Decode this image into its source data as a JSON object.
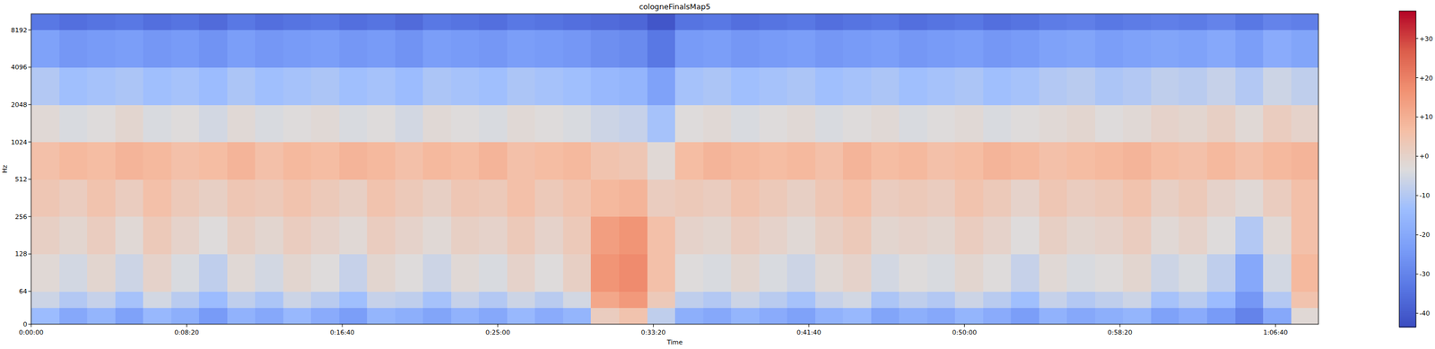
{
  "chart_data": {
    "type": "heatmap",
    "title": "cologneFinalsMap5",
    "x_label": "Time",
    "y_label": "Hz",
    "log": "y",
    "xlim": [
      0,
      4138
    ],
    "ylim": [
      0,
      11025
    ],
    "xticks": [
      {
        "value": 0,
        "label": "0:00:00"
      },
      {
        "value": 500,
        "label": "0:08:20"
      },
      {
        "value": 1000,
        "label": "0:16:40"
      },
      {
        "value": 1500,
        "label": "0:25:00"
      },
      {
        "value": 2000,
        "label": "0:33:20"
      },
      {
        "value": 2500,
        "label": "0:41:40"
      },
      {
        "value": 3000,
        "label": "0:50:00"
      },
      {
        "value": 3500,
        "label": "0:58:20"
      },
      {
        "value": 4000,
        "label": "1:06:40"
      }
    ],
    "yticks": [
      0,
      64,
      128,
      256,
      512,
      1024,
      2048,
      4096,
      8192
    ],
    "x_edges": [
      0,
      90,
      180,
      270,
      360,
      450,
      540,
      630,
      720,
      810,
      900,
      990,
      1080,
      1170,
      1260,
      1350,
      1440,
      1530,
      1620,
      1710,
      1800,
      1890,
      1980,
      2070,
      2160,
      2250,
      2340,
      2430,
      2520,
      2610,
      2700,
      2790,
      2880,
      2970,
      3060,
      3150,
      3240,
      3330,
      3420,
      3510,
      3600,
      3690,
      3780,
      3870,
      3960,
      4050,
      4140
    ],
    "y_edges": [
      0,
      32,
      64,
      128,
      256,
      512,
      1024,
      2048,
      4096,
      8192,
      11025
    ],
    "cells": [
      [
        -14,
        -20,
        -16,
        -22,
        -15,
        -18,
        -24,
        -17,
        -20,
        -15,
        -19,
        -23,
        -16,
        -18,
        -21,
        -17,
        -20,
        -15,
        -19,
        -16,
        2,
        5,
        -8,
        -18,
        -20,
        -16,
        -19,
        -22,
        -17,
        -15,
        -21,
        -18,
        -20,
        -16,
        -19,
        -23,
        -17,
        -20,
        -18,
        -16,
        -22,
        -19,
        -24,
        -30,
        -20,
        -2
      ],
      [
        -6,
        -10,
        -7,
        -12,
        -5,
        -9,
        -14,
        -8,
        -11,
        -6,
        -9,
        -13,
        -7,
        -8,
        -12,
        -7,
        -10,
        -6,
        -9,
        -5,
        12,
        15,
        3,
        -8,
        -10,
        -6,
        -9,
        -12,
        -7,
        -5,
        -11,
        -8,
        -10,
        -6,
        -9,
        -13,
        -7,
        -10,
        -8,
        -6,
        -12,
        -9,
        -14,
        -25,
        -10,
        5
      ],
      [
        -2,
        -5,
        -1,
        -6,
        0,
        -4,
        -8,
        -2,
        -5,
        -1,
        -3,
        -7,
        -1,
        -3,
        -6,
        -2,
        -4,
        0,
        -3,
        1,
        16,
        18,
        6,
        -3,
        -4,
        -1,
        -4,
        -6,
        -2,
        0,
        -5,
        -3,
        -4,
        -1,
        -3,
        -7,
        -2,
        -4,
        -3,
        -1,
        -6,
        -4,
        -8,
        -20,
        -5,
        8
      ],
      [
        1,
        -1,
        2,
        -2,
        3,
        0,
        -3,
        1,
        -1,
        2,
        0,
        -2,
        2,
        0,
        -2,
        1,
        0,
        3,
        0,
        3,
        14,
        16,
        6,
        0,
        -1,
        2,
        0,
        -2,
        1,
        3,
        -1,
        0,
        -1,
        2,
        0,
        -3,
        1,
        -1,
        0,
        2,
        -2,
        0,
        -3,
        -10,
        -2,
        6
      ],
      [
        4,
        2,
        5,
        2,
        6,
        3,
        1,
        4,
        3,
        5,
        3,
        1,
        5,
        3,
        1,
        4,
        3,
        6,
        3,
        5,
        8,
        9,
        2,
        3,
        2,
        5,
        3,
        1,
        4,
        6,
        2,
        3,
        2,
        5,
        3,
        0,
        4,
        2,
        3,
        5,
        1,
        3,
        0,
        -2,
        2,
        6
      ],
      [
        6,
        8,
        7,
        9,
        8,
        6,
        7,
        9,
        6,
        8,
        7,
        9,
        8,
        6,
        8,
        7,
        9,
        6,
        7,
        8,
        5,
        4,
        -2,
        7,
        9,
        8,
        7,
        8,
        6,
        9,
        7,
        8,
        6,
        7,
        9,
        8,
        6,
        7,
        8,
        9,
        7,
        6,
        8,
        6,
        8,
        9
      ],
      [
        -2,
        -4,
        -3,
        -1,
        -4,
        -3,
        -5,
        -2,
        -4,
        -3,
        -2,
        -4,
        -3,
        -5,
        -2,
        -3,
        -4,
        -2,
        -3,
        -4,
        -6,
        -7,
        -12,
        -3,
        -2,
        -4,
        -3,
        -2,
        -4,
        -3,
        -2,
        -4,
        -3,
        -2,
        -4,
        -3,
        -2,
        -1,
        -3,
        -2,
        0,
        -1,
        1,
        -2,
        2,
        0
      ],
      [
        -10,
        -13,
        -12,
        -11,
        -13,
        -12,
        -14,
        -11,
        -13,
        -12,
        -11,
        -13,
        -12,
        -14,
        -11,
        -12,
        -13,
        -11,
        -12,
        -13,
        -15,
        -16,
        -22,
        -12,
        -11,
        -13,
        -12,
        -11,
        -13,
        -12,
        -11,
        -13,
        -12,
        -11,
        -13,
        -12,
        -10,
        -9,
        -11,
        -10,
        -8,
        -9,
        -7,
        -10,
        -6,
        -8
      ],
      [
        -22,
        -25,
        -24,
        -23,
        -25,
        -24,
        -26,
        -23,
        -25,
        -24,
        -23,
        -25,
        -24,
        -26,
        -23,
        -24,
        -25,
        -23,
        -24,
        -25,
        -27,
        -28,
        -33,
        -24,
        -23,
        -25,
        -24,
        -23,
        -25,
        -24,
        -23,
        -25,
        -24,
        -23,
        -25,
        -24,
        -22,
        -21,
        -23,
        -22,
        -21,
        -22,
        -20,
        -23,
        -19,
        -21
      ],
      [
        -33,
        -35,
        -34,
        -33,
        -35,
        -34,
        -36,
        -33,
        -35,
        -34,
        -33,
        -35,
        -34,
        -36,
        -33,
        -34,
        -35,
        -33,
        -34,
        -35,
        -36,
        -37,
        -41,
        -34,
        -33,
        -35,
        -34,
        -33,
        -35,
        -34,
        -33,
        -35,
        -34,
        -33,
        -35,
        -34,
        -32,
        -31,
        -33,
        -32,
        -31,
        -32,
        -30,
        -33,
        -30,
        -31
      ]
    ],
    "colorbar_range": [
      -43.5,
      37
    ],
    "colorbar_ticks": [
      {
        "value": 30,
        "label": "+30"
      },
      {
        "value": 20,
        "label": "+20"
      },
      {
        "value": 10,
        "label": "+10"
      },
      {
        "value": 0,
        "label": "+0"
      },
      -10,
      -20,
      -30,
      -40
    ]
  }
}
